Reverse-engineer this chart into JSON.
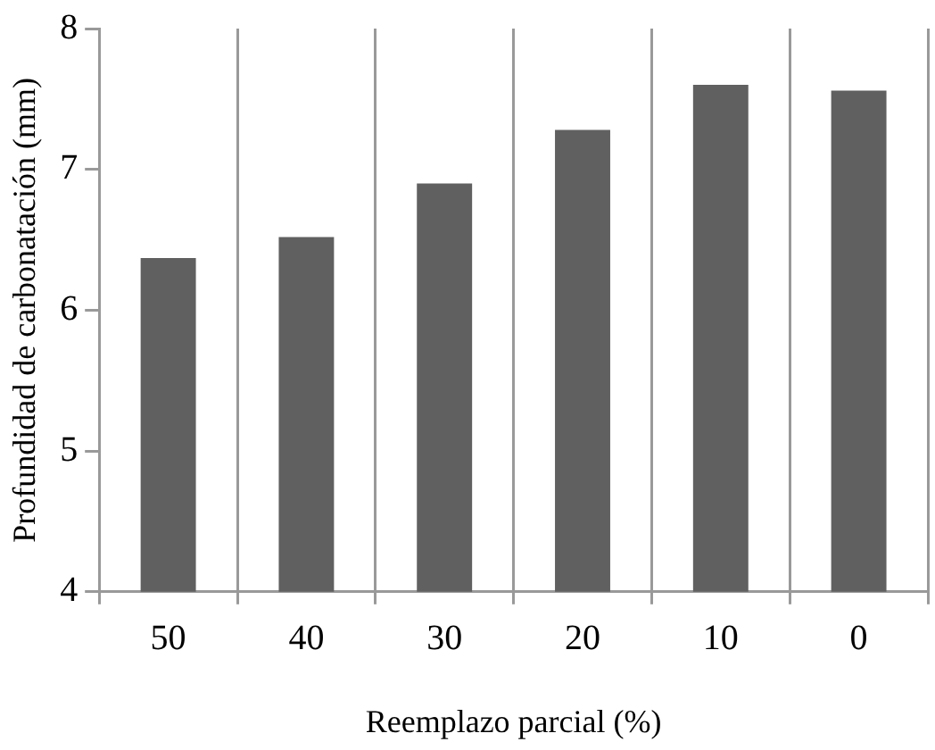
{
  "chart_data": {
    "type": "bar",
    "xlabel": "Reemplazo parcial (%)",
    "ylabel": "Profundidad de carbonatación (mm)",
    "categories": [
      "50",
      "40",
      "30",
      "20",
      "10",
      "0"
    ],
    "values": [
      6.37,
      6.52,
      6.9,
      7.28,
      7.6,
      7.56
    ],
    "color": "#606060",
    "ylim": [
      4,
      8
    ],
    "yticks": [
      4,
      5,
      6,
      7,
      8
    ],
    "grid": "x",
    "legend": false
  }
}
